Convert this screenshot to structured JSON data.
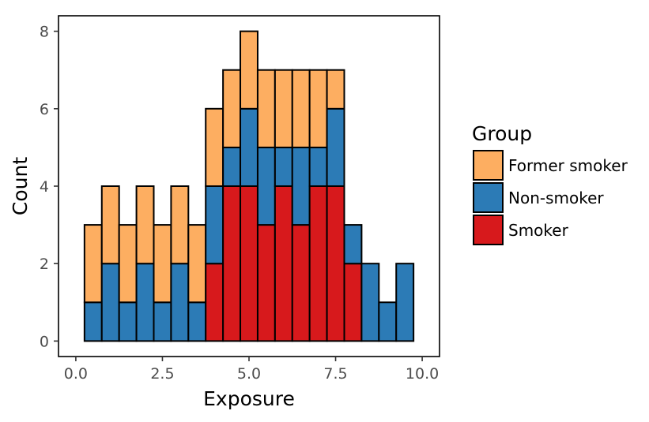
{
  "chart_data": {
    "type": "bar",
    "stacked": true,
    "xlabel": "Exposure",
    "ylabel": "Count",
    "xlim": [
      -0.5,
      10.5
    ],
    "ylim": [
      -0.4,
      8.4
    ],
    "x_ticks": [
      0,
      2.5,
      5,
      7.5,
      10
    ],
    "x_tick_labels": [
      "0.0",
      "2.5",
      "5.0",
      "7.5",
      "10.0"
    ],
    "y_ticks": [
      0,
      2,
      4,
      6,
      8
    ],
    "y_tick_labels": [
      "0",
      "2",
      "4",
      "6",
      "8"
    ],
    "bin_width": 0.5,
    "x": [
      0.5,
      1.0,
      1.5,
      2.0,
      2.5,
      3.0,
      3.5,
      4.0,
      4.5,
      5.0,
      5.5,
      6.0,
      6.5,
      7.0,
      7.5,
      8.0,
      8.5,
      9.0,
      9.5
    ],
    "series": [
      {
        "name": "Smoker",
        "color": "#d7191c",
        "values": [
          0,
          0,
          0,
          0,
          0,
          0,
          0,
          2,
          4,
          4,
          3,
          4,
          3,
          4,
          4,
          2,
          0,
          0,
          0
        ]
      },
      {
        "name": "Non-smoker",
        "color": "#2c7bb6",
        "values": [
          1,
          2,
          1,
          2,
          1,
          2,
          1,
          2,
          1,
          2,
          2,
          1,
          2,
          1,
          2,
          1,
          2,
          1,
          2
        ]
      },
      {
        "name": "Former smoker",
        "color": "#fdae61",
        "values": [
          2,
          2,
          2,
          2,
          2,
          2,
          2,
          2,
          2,
          2,
          2,
          2,
          2,
          2,
          1,
          0,
          0,
          0,
          0
        ]
      }
    ],
    "grid": false,
    "legend": {
      "title": "Group",
      "placement": "right",
      "entries": [
        {
          "label": "Former smoker",
          "color": "#fdae61"
        },
        {
          "label": "Non-smoker",
          "color": "#2c7bb6"
        },
        {
          "label": "Smoker",
          "color": "#d7191c"
        }
      ]
    }
  }
}
